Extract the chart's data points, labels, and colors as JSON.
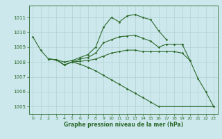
{
  "xlabel": "Graphe pression niveau de la mer (hPa)",
  "ylim": [
    1004.5,
    1011.8
  ],
  "xlim": [
    -0.5,
    23.5
  ],
  "yticks": [
    1005,
    1006,
    1007,
    1008,
    1009,
    1010,
    1011
  ],
  "xticks": [
    0,
    1,
    2,
    3,
    4,
    5,
    6,
    7,
    8,
    9,
    10,
    11,
    12,
    13,
    14,
    15,
    16,
    17,
    18,
    19,
    20,
    21,
    22,
    23
  ],
  "bg_color": "#cce8ec",
  "line_color": "#2d6a2d",
  "grid_color": "#aacccc",
  "series1_x": [
    0,
    1,
    2,
    3,
    4,
    5,
    6,
    7,
    8,
    9,
    10,
    11,
    12,
    13,
    14,
    15,
    16,
    17
  ],
  "series1_y": [
    1009.7,
    1008.8,
    1008.2,
    1008.15,
    1008.0,
    1008.1,
    1008.3,
    1008.5,
    1009.0,
    1010.35,
    1011.0,
    1010.7,
    1011.1,
    1011.2,
    1011.0,
    1010.85,
    1010.1,
    1009.5
  ],
  "series2_x": [
    2,
    3,
    4,
    5,
    6,
    7,
    8,
    9,
    10,
    11,
    12,
    13,
    14,
    15,
    16,
    17,
    18,
    19
  ],
  "series2_y": [
    1008.2,
    1008.15,
    1007.8,
    1008.0,
    1008.2,
    1008.3,
    1008.6,
    1009.3,
    1009.5,
    1009.7,
    1009.75,
    1009.8,
    1009.6,
    1009.4,
    1009.0,
    1009.2,
    1009.2,
    1009.2
  ],
  "series3_x": [
    2,
    3,
    4,
    5,
    6,
    7,
    8,
    9,
    10,
    11,
    12,
    13,
    14,
    15,
    16,
    17,
    18,
    19,
    20
  ],
  "series3_y": [
    1008.2,
    1008.15,
    1007.8,
    1008.0,
    1008.05,
    1008.1,
    1008.2,
    1008.4,
    1008.6,
    1008.7,
    1008.8,
    1008.8,
    1008.7,
    1008.7,
    1008.7,
    1008.7,
    1008.7,
    1008.6,
    1008.1
  ],
  "series4_x": [
    2,
    3,
    4,
    5,
    6,
    7,
    8,
    9,
    10,
    11,
    12,
    13,
    14,
    15,
    16,
    23
  ],
  "series4_y": [
    1008.2,
    1008.15,
    1007.8,
    1008.0,
    1007.85,
    1007.65,
    1007.4,
    1007.1,
    1006.8,
    1006.5,
    1006.2,
    1005.9,
    1005.6,
    1005.3,
    1005.0,
    1005.0
  ],
  "series5_x": [
    19,
    20,
    21,
    22,
    23
  ],
  "series5_y": [
    1009.2,
    1008.1,
    1006.9,
    1006.0,
    1005.0
  ]
}
